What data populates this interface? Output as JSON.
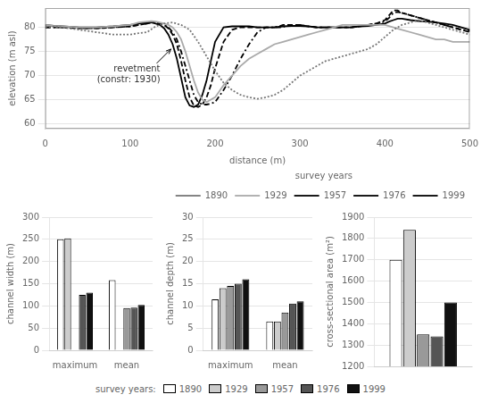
{
  "chart_data": [
    {
      "type": "line",
      "x_label": "distance (m)",
      "y_label": "elevation (m asl)",
      "xlim": [
        0,
        500
      ],
      "ylim": [
        59,
        84
      ],
      "xticks": [
        0,
        100,
        200,
        300,
        400,
        500
      ],
      "yticks": [
        60,
        65,
        70,
        75,
        80
      ],
      "grid": "y",
      "legend": "lower right",
      "legend_title": "survey years",
      "annotations": [
        {
          "text": "revetment\n(constr: 1930)",
          "x": 148,
          "y": 75.5
        }
      ],
      "series": [
        {
          "name": "1890",
          "color": "#777777",
          "line_style": "dotted",
          "x": [
            0,
            10,
            20,
            40,
            60,
            80,
            100,
            110,
            120,
            130,
            140,
            150,
            160,
            170,
            180,
            190,
            200,
            210,
            220,
            230,
            240,
            250,
            260,
            270,
            280,
            290,
            300,
            310,
            320,
            330,
            340,
            350,
            360,
            370,
            380,
            390,
            400,
            410,
            420,
            430,
            440,
            450,
            460,
            470,
            480,
            490,
            500
          ],
          "values": [
            80.0,
            80.2,
            80.0,
            79.5,
            79.0,
            78.5,
            78.5,
            78.8,
            79.0,
            80.2,
            80.8,
            81.0,
            80.5,
            79.5,
            77.0,
            74.0,
            71.0,
            68.5,
            67.0,
            66.0,
            65.5,
            65.2,
            65.5,
            66.0,
            67.0,
            68.5,
            70.0,
            71.0,
            72.0,
            73.0,
            73.5,
            74.0,
            74.5,
            75.0,
            75.5,
            76.5,
            78.0,
            79.5,
            80.5,
            81.0,
            81.5,
            81.0,
            80.5,
            80.0,
            79.5,
            79.0,
            78.5
          ]
        },
        {
          "name": "1929",
          "color": "#aaaaaa",
          "line_style": "solid",
          "x": [
            0,
            10,
            20,
            40,
            60,
            80,
            100,
            110,
            120,
            125,
            130,
            135,
            140,
            145,
            150,
            155,
            160,
            165,
            170,
            175,
            180,
            185,
            190,
            200,
            210,
            220,
            230,
            240,
            250,
            260,
            270,
            280,
            290,
            300,
            310,
            320,
            330,
            340,
            350,
            360,
            370,
            380,
            390,
            400,
            410,
            420,
            430,
            440,
            450,
            460,
            470,
            480,
            490,
            500
          ],
          "values": [
            80.5,
            80.3,
            80.2,
            80.0,
            80.0,
            80.2,
            80.5,
            81.0,
            81.2,
            81.3,
            81.2,
            81.0,
            80.8,
            80.5,
            80.0,
            79.0,
            77.5,
            75.0,
            72.0,
            69.0,
            66.5,
            65.0,
            64.5,
            65.5,
            68.0,
            70.0,
            72.0,
            73.5,
            74.5,
            75.5,
            76.5,
            77.0,
            77.5,
            78.0,
            78.5,
            79.0,
            79.5,
            80.0,
            80.5,
            80.5,
            80.5,
            80.5,
            80.5,
            80.5,
            80.0,
            79.5,
            79.0,
            78.5,
            78.0,
            77.5,
            77.5,
            77.0,
            77.0,
            77.0
          ]
        },
        {
          "name": "1957",
          "color": "#000000",
          "line_style": "dashdot",
          "x": [
            0,
            10,
            20,
            40,
            60,
            80,
            100,
            110,
            120,
            125,
            130,
            135,
            140,
            145,
            150,
            155,
            160,
            165,
            170,
            175,
            180,
            185,
            190,
            195,
            200,
            210,
            220,
            230,
            240,
            250,
            260,
            270,
            275,
            280,
            285,
            290,
            295,
            300,
            310,
            320,
            330,
            340,
            350,
            360,
            370,
            380,
            390,
            400,
            405,
            410,
            415,
            420,
            430,
            440,
            450,
            460,
            470,
            480,
            490,
            500
          ],
          "values": [
            80.0,
            80.0,
            80.0,
            79.8,
            79.8,
            80.0,
            80.2,
            80.5,
            80.8,
            81.0,
            81.0,
            80.8,
            80.5,
            80.0,
            79.0,
            77.5,
            75.0,
            72.0,
            69.0,
            66.0,
            64.5,
            64.0,
            64.0,
            64.2,
            64.5,
            67.0,
            70.0,
            73.5,
            76.5,
            79.0,
            80.0,
            80.0,
            80.0,
            80.0,
            80.5,
            80.5,
            80.5,
            80.5,
            80.2,
            80.0,
            80.0,
            80.0,
            80.0,
            80.0,
            80.2,
            80.5,
            80.8,
            81.2,
            82.0,
            83.0,
            83.2,
            83.0,
            82.5,
            82.0,
            81.5,
            81.0,
            80.5,
            80.0,
            79.5,
            79.2
          ]
        },
        {
          "name": "1976",
          "color": "#000000",
          "line_style": "dashed",
          "x": [
            0,
            10,
            20,
            40,
            60,
            80,
            100,
            110,
            120,
            125,
            130,
            135,
            140,
            145,
            150,
            155,
            160,
            165,
            170,
            175,
            180,
            185,
            190,
            195,
            200,
            210,
            220,
            230,
            240,
            250,
            260,
            270,
            275,
            280,
            285,
            290,
            295,
            300,
            310,
            320,
            330,
            340,
            350,
            360,
            370,
            380,
            390,
            400,
            405,
            410,
            415,
            420,
            430,
            440,
            450,
            460,
            470,
            480,
            490,
            500
          ],
          "values": [
            80.0,
            80.0,
            80.0,
            79.8,
            79.8,
            80.0,
            80.2,
            80.5,
            80.8,
            81.0,
            81.0,
            80.8,
            80.5,
            79.8,
            78.5,
            76.5,
            73.0,
            69.0,
            65.5,
            63.8,
            63.5,
            64.0,
            65.5,
            68.0,
            71.5,
            77.0,
            79.5,
            80.0,
            80.0,
            80.0,
            80.0,
            80.0,
            80.2,
            80.5,
            80.5,
            80.5,
            80.5,
            80.5,
            80.2,
            80.0,
            80.0,
            80.0,
            80.0,
            80.0,
            80.2,
            80.5,
            80.8,
            81.5,
            82.5,
            83.5,
            83.5,
            83.0,
            82.5,
            82.0,
            81.5,
            81.0,
            80.5,
            80.0,
            79.5,
            79.0
          ]
        },
        {
          "name": "1999",
          "color": "#000000",
          "line_style": "solid",
          "x": [
            0,
            10,
            20,
            40,
            60,
            80,
            100,
            110,
            120,
            125,
            130,
            135,
            140,
            145,
            150,
            155,
            160,
            165,
            170,
            175,
            180,
            185,
            190,
            195,
            200,
            210,
            220,
            230,
            240,
            250,
            260,
            270,
            280,
            290,
            300,
            310,
            320,
            330,
            340,
            350,
            360,
            370,
            380,
            390,
            400,
            405,
            410,
            415,
            420,
            430,
            440,
            450,
            460,
            470,
            480,
            490,
            500
          ],
          "values": [
            80.5,
            80.3,
            80.2,
            80.0,
            80.0,
            80.2,
            80.5,
            80.8,
            81.0,
            81.0,
            80.8,
            80.5,
            79.8,
            78.5,
            76.5,
            73.5,
            69.5,
            65.5,
            63.8,
            63.5,
            64.0,
            66.0,
            69.0,
            73.0,
            77.0,
            80.0,
            80.2,
            80.2,
            80.2,
            80.0,
            80.0,
            80.0,
            80.2,
            80.3,
            80.3,
            80.2,
            80.0,
            80.0,
            80.0,
            80.0,
            80.0,
            80.2,
            80.3,
            80.5,
            80.8,
            81.2,
            81.5,
            81.8,
            81.8,
            81.5,
            81.3,
            81.2,
            81.0,
            80.8,
            80.5,
            80.0,
            79.5
          ]
        }
      ]
    },
    {
      "type": "bar",
      "y_label": "channel width (m)",
      "categories": [
        "maximum",
        "mean"
      ],
      "ylim": [
        0,
        300
      ],
      "yticks": [
        0,
        50,
        100,
        150,
        200,
        250,
        300
      ],
      "grid": "y",
      "legend": false,
      "series": [
        {
          "name": "1890",
          "color": "#ffffff",
          "values": [
            250,
            158
          ]
        },
        {
          "name": "1929",
          "color": "#cccccc",
          "values": [
            252,
            null
          ]
        },
        {
          "name": "1957",
          "color": "#999999",
          "values": [
            null,
            95
          ]
        },
        {
          "name": "1976",
          "color": "#555555",
          "values": [
            125,
            96
          ]
        },
        {
          "name": "1999",
          "color": "#111111",
          "values": [
            130,
            102
          ]
        }
      ]
    },
    {
      "type": "bar",
      "y_label": "channel depth (m)",
      "categories": [
        "maximum",
        "mean"
      ],
      "ylim": [
        0,
        30
      ],
      "yticks": [
        0,
        5,
        10,
        15,
        20,
        25,
        30
      ],
      "grid": "y",
      "legend": false,
      "series": [
        {
          "name": "1890",
          "color": "#ffffff",
          "values": [
            11.5,
            6.5
          ]
        },
        {
          "name": "1929",
          "color": "#cccccc",
          "values": [
            14.0,
            6.5
          ]
        },
        {
          "name": "1957",
          "color": "#999999",
          "values": [
            14.5,
            8.5
          ]
        },
        {
          "name": "1976",
          "color": "#555555",
          "values": [
            15.0,
            10.5
          ]
        },
        {
          "name": "1999",
          "color": "#111111",
          "values": [
            16.0,
            11.0
          ]
        }
      ]
    },
    {
      "type": "bar",
      "y_label": "cross-sectional area (m²)",
      "categories": [
        null
      ],
      "ylim": [
        1200,
        1900
      ],
      "yticks": [
        1200,
        1300,
        1400,
        1500,
        1600,
        1700,
        1800,
        1900
      ],
      "grid": "y",
      "tick_labels": "y",
      "legend": "lower center",
      "legend_title": "survey years:",
      "series": [
        {
          "name": "1890",
          "color": "#ffffff",
          "values": [
            1700
          ]
        },
        {
          "name": "1929",
          "color": "#cccccc",
          "values": [
            1840
          ]
        },
        {
          "name": "1957",
          "color": "#999999",
          "values": [
            1350
          ]
        },
        {
          "name": "1976",
          "color": "#555555",
          "values": [
            1340
          ]
        },
        {
          "name": "1999",
          "color": "#111111",
          "values": [
            1500
          ]
        }
      ]
    }
  ]
}
